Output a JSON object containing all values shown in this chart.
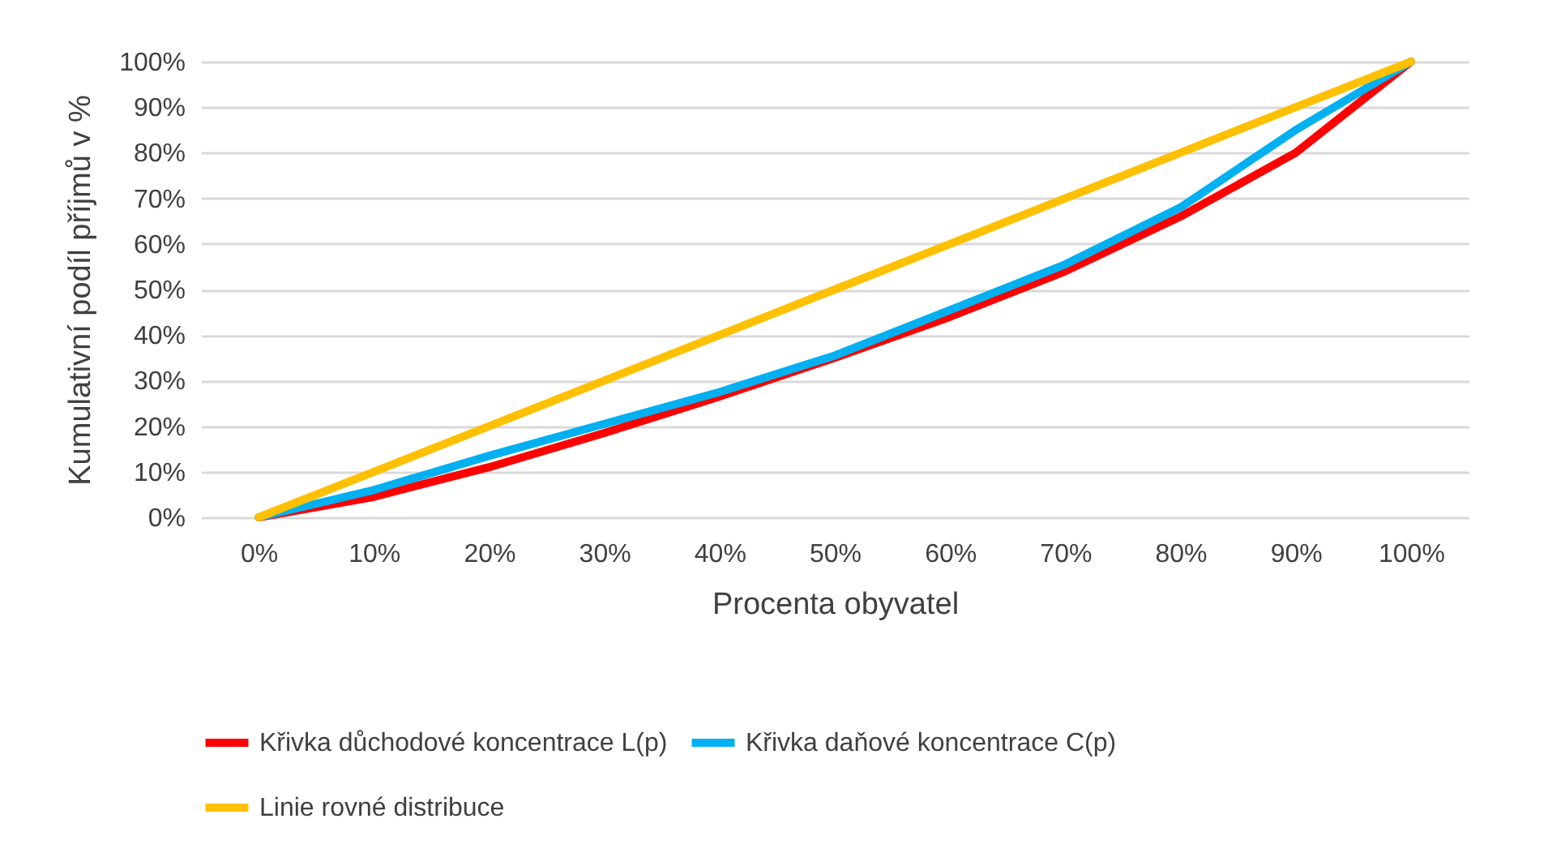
{
  "chart_data": {
    "type": "line",
    "xlabel": "Procenta obyvatel",
    "ylabel": "Kumulativní podíl příjmů v %",
    "categories": [
      "0%",
      "10%",
      "20%",
      "30%",
      "40%",
      "50%",
      "60%",
      "70%",
      "80%",
      "90%",
      "100%"
    ],
    "series": [
      {
        "name": "Křivka důchodové koncentrace L(p)",
        "color": "#ff0000",
        "values": [
          0,
          4.5,
          11,
          18.5,
          26.5,
          35,
          44,
          54,
          66,
          80,
          100
        ]
      },
      {
        "name": "Křivka daňové koncentrace C(p)",
        "color": "#00b0f0",
        "values": [
          0,
          6,
          13.5,
          20.5,
          27.5,
          35.5,
          45.5,
          55.5,
          68,
          85,
          100
        ]
      },
      {
        "name": "Linie rovné distribuce",
        "color": "#ffc000",
        "values": [
          0,
          10,
          20,
          30,
          40,
          50,
          60,
          70,
          80,
          90,
          100
        ]
      }
    ],
    "ylim": [
      0,
      100
    ],
    "yticks": [
      {
        "value": 0,
        "label": "0%"
      },
      {
        "value": 10,
        "label": "10%"
      },
      {
        "value": 20,
        "label": "20%"
      },
      {
        "value": 30,
        "label": "30%"
      },
      {
        "value": 40,
        "label": "40%"
      },
      {
        "value": 50,
        "label": "50%"
      },
      {
        "value": 60,
        "label": "60%"
      },
      {
        "value": 70,
        "label": "70%"
      },
      {
        "value": 80,
        "label": "80%"
      },
      {
        "value": 90,
        "label": "90%"
      },
      {
        "value": 100,
        "label": "100%"
      }
    ],
    "grid": "y",
    "legend": "bottom",
    "marker": "none",
    "line_style": "solid"
  }
}
